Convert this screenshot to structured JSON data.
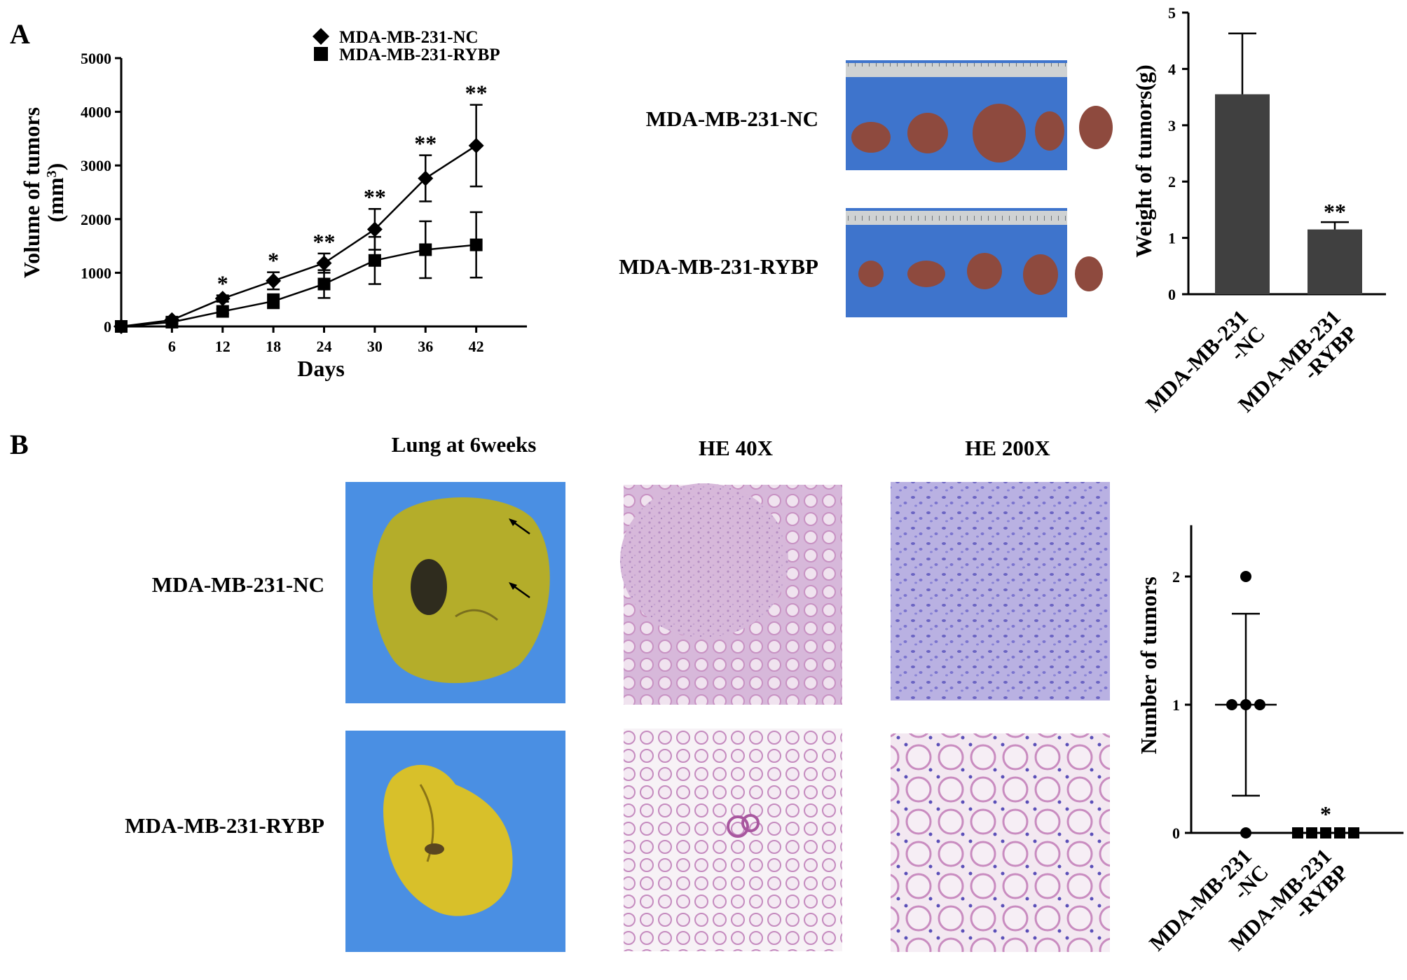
{
  "panel_labels": {
    "a": "A",
    "b": "B"
  },
  "group_labels": {
    "nc": "MDA-MB-231-NC",
    "rybp": "MDA-MB-231-RYBP"
  },
  "column_titles": {
    "lung": "Lung at 6weeks",
    "he40": "HE 40X",
    "he200": "HE 200X"
  },
  "colors": {
    "ruler_background": "#3e74cc",
    "ruler": "#cfd2d3",
    "tumor": "#8e4a3e",
    "lung_nc": "#b4ad2a",
    "lung_rybp": "#d8c02a",
    "photo_background": "#4a8fe3",
    "he_low": "#d7b8da",
    "he_high": "#b9b1e2",
    "bar": "#404040"
  },
  "chart_data": [
    {
      "type": "line",
      "xlabel": "Days",
      "ylabel_line1": "Volume of tumors",
      "ylabel_line2_prefix": "(mm",
      "ylabel_sup": "3",
      "ylabel_line2_suffix": ")",
      "xlim": [
        0,
        48
      ],
      "ylim": [
        0,
        5000
      ],
      "xticks": [
        6,
        12,
        18,
        24,
        30,
        36,
        42
      ],
      "yticks": [
        0,
        1000,
        2000,
        3000,
        4000,
        5000
      ],
      "legend_position": "top",
      "series": [
        {
          "name": "MDA-MB-231-NC",
          "marker": "diamond",
          "x": [
            0,
            6,
            12,
            18,
            24,
            30,
            36,
            42
          ],
          "y": [
            0,
            120,
            520,
            850,
            1180,
            1810,
            2760,
            3370
          ],
          "err": [
            0,
            30,
            60,
            160,
            180,
            380,
            430,
            760
          ]
        },
        {
          "name": "MDA-MB-231-RYBP",
          "marker": "square",
          "x": [
            0,
            6,
            12,
            18,
            24,
            30,
            36,
            42
          ],
          "y": [
            0,
            80,
            280,
            470,
            790,
            1230,
            1430,
            1520
          ],
          "err": [
            0,
            20,
            40,
            130,
            260,
            440,
            530,
            610
          ]
        }
      ],
      "annotations": [
        {
          "x": 12,
          "y": 520,
          "text": "*"
        },
        {
          "x": 18,
          "y": 850,
          "text": "*"
        },
        {
          "x": 24,
          "y": 1180,
          "text": "**"
        },
        {
          "x": 30,
          "y": 1810,
          "text": "**"
        },
        {
          "x": 36,
          "y": 2760,
          "text": "**"
        },
        {
          "x": 42,
          "y": 3370,
          "text": "**"
        }
      ]
    },
    {
      "type": "bar",
      "ylabel": "Weight of tumors(g)",
      "ylim": [
        0,
        5
      ],
      "yticks": [
        0,
        1,
        2,
        3,
        4,
        5
      ],
      "categories": [
        "MDA-MB-231|-NC",
        "MDA-MB-231|-RYBP"
      ],
      "values": [
        3.55,
        1.15
      ],
      "err": [
        1.08,
        0.13
      ],
      "annotations": [
        "",
        "**"
      ]
    },
    {
      "type": "scatter",
      "ylabel": "Number of tumors",
      "ylim": [
        0,
        2.4
      ],
      "yticks": [
        0,
        1,
        2
      ],
      "categories": [
        "MDA-MB-231|-NC",
        "MDA-MB-231|-RYBP"
      ],
      "groups": [
        {
          "marker": "circle",
          "values": [
            2,
            1,
            1,
            1,
            0
          ],
          "mean": 1.0,
          "sd_upper": 1.71,
          "sd_lower": 0.29
        },
        {
          "marker": "square",
          "values": [
            0,
            0,
            0,
            0,
            0
          ],
          "mean": 0,
          "annotation": "*"
        }
      ]
    }
  ]
}
